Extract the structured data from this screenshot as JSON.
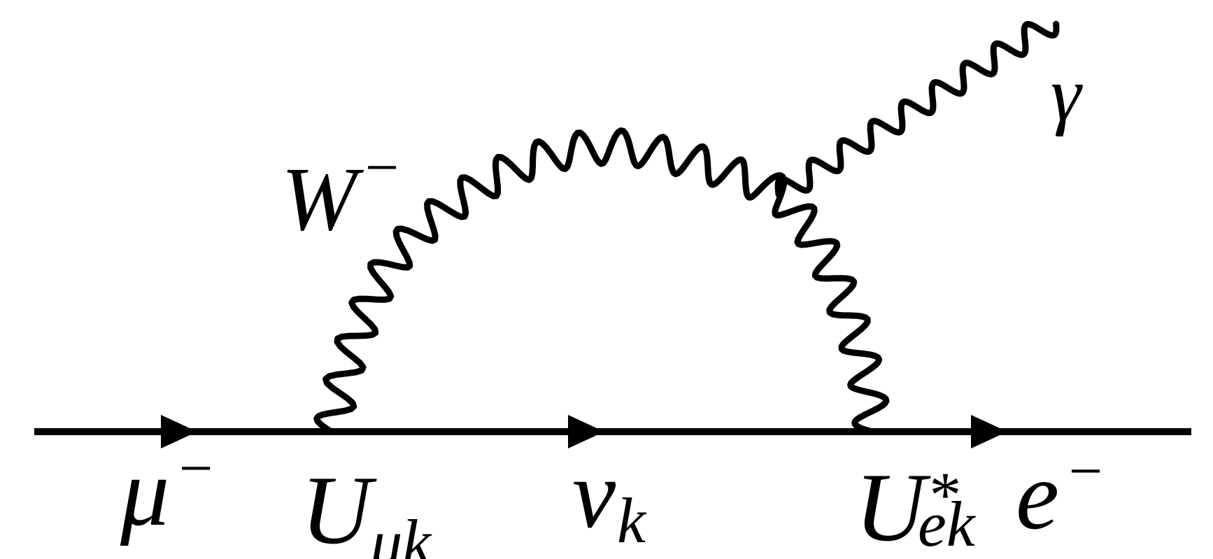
{
  "diagram": {
    "background": "#ffffff",
    "line_color": "#000000",
    "labels": {
      "muon": {
        "base": "μ",
        "sign": "−"
      },
      "mixing_in": {
        "base": "U",
        "sub": "μk"
      },
      "neutrino": {
        "base": "ν",
        "sub": "k"
      },
      "mixing_out": {
        "base": "U",
        "sup": "*",
        "sub": "ek"
      },
      "electron": {
        "base": "e",
        "sign": "−"
      },
      "w_boson": {
        "base": "W",
        "sign": "−"
      },
      "photon": {
        "base": "γ"
      }
    }
  }
}
